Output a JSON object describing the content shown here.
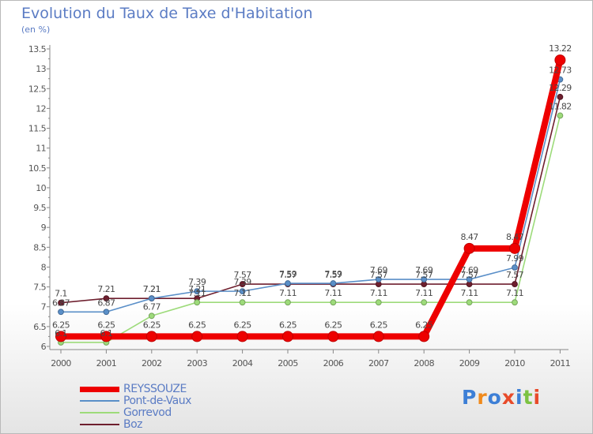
{
  "chart_data": {
    "type": "line",
    "title": "Evolution du Taux de Taxe d'Habitation",
    "subtitle": "(en %)",
    "xlabel": "",
    "ylabel": "",
    "x": [
      "2000",
      "2001",
      "2002",
      "2003",
      "2004",
      "2005",
      "2006",
      "2007",
      "2008",
      "2009",
      "2010",
      "2011"
    ],
    "ylim": [
      6,
      13.5
    ],
    "yticks": [
      "6",
      "6.5",
      "7",
      "7.5",
      "8",
      "8.5",
      "9",
      "9.5",
      "10",
      "10.5",
      "11",
      "11.5",
      "12",
      "12.5",
      "13",
      "13.5"
    ],
    "grid": false,
    "legend_position": "bottom-left",
    "series": [
      {
        "name": "Boz",
        "color": "#6e1f2e",
        "values": [
          7.1,
          7.21,
          7.21,
          7.21,
          7.57,
          7.57,
          7.57,
          7.57,
          7.57,
          7.57,
          7.57,
          12.29
        ],
        "labels": [
          "7.1",
          "7.21",
          "7.21",
          "7.21",
          "7.57",
          "7.57",
          "7.57",
          "7.57",
          "7.57",
          "7.57",
          "7.57",
          "12.29"
        ]
      },
      {
        "name": "Gorrevod",
        "color": "#9ddb7a",
        "values": [
          6.1,
          6.1,
          6.77,
          7.11,
          7.11,
          7.11,
          7.11,
          7.11,
          7.11,
          7.11,
          7.11,
          11.82
        ],
        "labels": [
          "6.1",
          "6.1",
          "6.77",
          "7.11",
          "7.11",
          "7.11",
          "7.11",
          "7.11",
          "7.11",
          "7.11",
          "7.11",
          "11.82"
        ]
      },
      {
        "name": "Pont-de-Vaux",
        "color": "#5a8fc8",
        "values": [
          6.87,
          6.87,
          7.21,
          7.39,
          7.39,
          7.59,
          7.59,
          7.69,
          7.69,
          7.69,
          7.99,
          12.73
        ],
        "labels": [
          "6.87",
          "6.87",
          "7.21",
          "7.39",
          "7.39",
          "7.59",
          "7.59",
          "7.69",
          "7.69",
          "7.69",
          "7.99",
          "12.73"
        ]
      },
      {
        "name": "REYSSOUZE",
        "color": "#ee0000",
        "values": [
          6.25,
          6.25,
          6.25,
          6.25,
          6.25,
          6.25,
          6.25,
          6.25,
          6.25,
          8.47,
          8.47,
          13.22
        ],
        "labels": [
          "6.25",
          "6.25",
          "6.25",
          "6.25",
          "6.25",
          "6.25",
          "6.25",
          "6.25",
          "6.25",
          "8.47",
          "8.47",
          "13.22"
        ]
      }
    ],
    "legend_order": [
      "REYSSOUZE",
      "Pont-de-Vaux",
      "Gorrevod",
      "Boz"
    ]
  },
  "logo": {
    "text": "Proxiti",
    "letter_colors": [
      "#3d7fd6",
      "#f08a1c",
      "#3d7fd6",
      "#e84b2a",
      "#3d7fd6",
      "#7cc242",
      "#e84b2a"
    ]
  }
}
